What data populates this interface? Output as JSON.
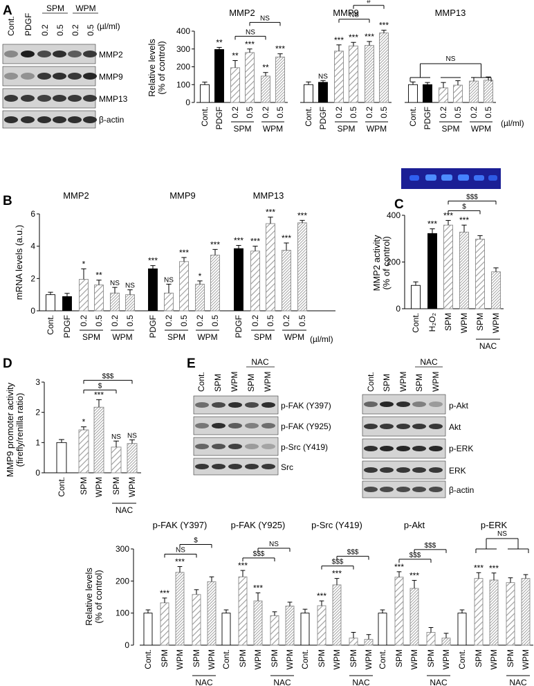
{
  "panels": {
    "a": "A",
    "b": "B",
    "c": "C",
    "d": "D",
    "e": "E"
  },
  "blot_a": {
    "lanes": [
      "Cont.",
      "PDGF",
      "0.2",
      "0.5",
      "0.2",
      "0.5"
    ],
    "group_spm": "SPM",
    "group_wpm": "WPM",
    "unit": "(µl/ml)",
    "rows": [
      "MMP2",
      "MMP9",
      "MMP13",
      "β-actin"
    ]
  },
  "blot_e": {
    "lanes": [
      "Cont.",
      "SPM",
      "WPM",
      "SPM",
      "WPM"
    ],
    "nac": "NAC",
    "rows_left": [
      "p-FAK (Y397)",
      "p-FAK (Y925)",
      "p-Src (Y419)",
      "Src"
    ],
    "rows_right": [
      "p-Akt",
      "Akt",
      "p-ERK",
      "ERK",
      "β-actin"
    ]
  },
  "chart_data": [
    {
      "id": "A",
      "type": "bar",
      "ylabel": [
        "Relative levels",
        "(% of control)"
      ],
      "ylim": [
        0,
        400
      ],
      "yticks": [
        0,
        100,
        200,
        300,
        400
      ],
      "unit": "(µl/ml)",
      "categories": [
        "Cont.",
        "PDGF",
        "0.2",
        "0.5",
        "0.2",
        "0.5"
      ],
      "groups": [
        {
          "label": "SPM",
          "from": 2,
          "to": 3
        },
        {
          "label": "WPM",
          "from": 4,
          "to": 5
        }
      ],
      "subcharts": [
        {
          "title": "MMP2",
          "values": [
            100,
            297,
            195,
            280,
            148,
            255
          ],
          "errors": [
            14,
            12,
            40,
            20,
            20,
            18
          ],
          "sig": [
            "",
            "**",
            "**",
            "***",
            "**",
            "***"
          ],
          "brackets": [
            {
              "from": 3,
              "to": 5,
              "label": "NS",
              "level": 1
            },
            {
              "from": 2,
              "to": 4,
              "label": "NS",
              "level": 0
            }
          ]
        },
        {
          "title": "MMP9",
          "values": [
            100,
            113,
            288,
            317,
            320,
            390
          ],
          "errors": [
            15,
            10,
            35,
            20,
            22,
            15
          ],
          "sig": [
            "",
            "NS",
            "***",
            "***",
            "***",
            "***"
          ],
          "brackets": [
            {
              "from": 3,
              "to": 5,
              "label": "#",
              "level": 1
            },
            {
              "from": 2,
              "to": 4,
              "label": "NS",
              "level": 0
            }
          ]
        },
        {
          "title": "MMP13",
          "values": [
            100,
            100,
            82,
            97,
            120,
            125
          ],
          "errors": [
            15,
            12,
            30,
            25,
            20,
            18
          ],
          "sig": [
            "",
            "",
            "",
            "",
            "",
            ""
          ],
          "bracket": {
            "label": "NS"
          }
        }
      ]
    },
    {
      "id": "B",
      "type": "bar",
      "ylabel": [
        "mRNA levels (a.u.)"
      ],
      "ylim": [
        0,
        6
      ],
      "yticks": [
        0,
        2,
        4,
        6
      ],
      "unit": "(µl/ml)",
      "subcharts": [
        {
          "title": "MMP2",
          "categories": [
            "Cont.",
            "PDGF",
            "0.2",
            "0.5",
            "0.2",
            "0.5"
          ],
          "groups": [
            {
              "label": "SPM",
              "from": 2,
              "to": 3
            },
            {
              "label": "WPM",
              "from": 4,
              "to": 5
            }
          ],
          "values": [
            1.0,
            0.88,
            1.95,
            1.6,
            1.1,
            1.0
          ],
          "errors": [
            0.15,
            0.2,
            0.65,
            0.3,
            0.35,
            0.3
          ],
          "sig": [
            "",
            "",
            "*",
            "**",
            "NS",
            "NS"
          ]
        },
        {
          "title": "MMP9",
          "categories": [
            "PDGF",
            "0.2",
            "0.5",
            "0.2",
            "0.5"
          ],
          "groups": [
            {
              "label": "SPM",
              "from": 1,
              "to": 2
            },
            {
              "label": "WPM",
              "from": 3,
              "to": 4
            }
          ],
          "values": [
            2.6,
            1.1,
            3.05,
            1.65,
            3.45
          ],
          "errors": [
            0.2,
            0.55,
            0.25,
            0.2,
            0.35
          ],
          "sig": [
            "***",
            "NS",
            "***",
            "*",
            "***"
          ]
        },
        {
          "title": "MMP13",
          "categories": [
            "PDGF",
            "0.2",
            "0.5",
            "0.2",
            "0.5"
          ],
          "groups": [
            {
              "label": "SPM",
              "from": 1,
              "to": 2
            },
            {
              "label": "WPM",
              "from": 3,
              "to": 4
            }
          ],
          "values": [
            3.85,
            3.7,
            5.4,
            3.75,
            5.45
          ],
          "errors": [
            0.2,
            0.3,
            0.4,
            0.45,
            0.15
          ],
          "sig": [
            "***",
            "***",
            "***",
            "***",
            "***"
          ]
        }
      ]
    },
    {
      "id": "C",
      "type": "bar",
      "title": "",
      "ylabel": [
        "MMP2 activity",
        "(% of control)"
      ],
      "ylim": [
        0,
        400
      ],
      "yticks": [
        0,
        200,
        400
      ],
      "categories": [
        "Cont.",
        "H₂O₂",
        "SPM",
        "WPM",
        "SPM",
        "WPM"
      ],
      "values": [
        100,
        322,
        358,
        328,
        298,
        158
      ],
      "errors": [
        15,
        20,
        20,
        30,
        15,
        17
      ],
      "sig": [
        "",
        "***",
        "***",
        "***",
        "",
        ""
      ],
      "nac_group": {
        "label": "NAC",
        "from": 4,
        "to": 5
      },
      "brackets": [
        {
          "from": 2,
          "to": 4,
          "label": "$",
          "level": 0
        },
        {
          "from": 2,
          "to": 5,
          "label": "$$$",
          "level": 1
        }
      ]
    },
    {
      "id": "D",
      "type": "bar",
      "ylabel": [
        "MMP9 promoter activity",
        "(firefly/renilla ratio)"
      ],
      "ylim": [
        0,
        3
      ],
      "yticks": [
        0,
        1,
        2,
        3
      ],
      "categories": [
        "Cont.",
        "SPM",
        "WPM",
        "SPM",
        "WPM"
      ],
      "values": [
        1.0,
        1.42,
        2.17,
        0.85,
        0.97
      ],
      "errors": [
        0.1,
        0.1,
        0.25,
        0.2,
        0.12
      ],
      "sig": [
        "",
        "*",
        "***",
        "NS",
        "NS"
      ],
      "nac_group": {
        "label": "NAC",
        "from": 3,
        "to": 4
      },
      "brackets": [
        {
          "from": 1,
          "to": 3,
          "label": "$",
          "level": 0
        },
        {
          "from": 1,
          "to": 4,
          "label": "$$$",
          "level": 1
        }
      ]
    },
    {
      "id": "E",
      "type": "bar",
      "ylabel": [
        "Relative levels",
        "(% of control)"
      ],
      "ylim": [
        0,
        300
      ],
      "yticks": [
        0,
        100,
        200,
        300
      ],
      "categories": [
        "Cont.",
        "SPM",
        "WPM",
        "SPM",
        "WPM"
      ],
      "nac_group": {
        "label": "NAC",
        "from": 3,
        "to": 4
      },
      "subcharts": [
        {
          "title": "p-FAK (Y397)",
          "values": [
            100,
            132,
            227,
            158,
            198
          ],
          "errors": [
            10,
            15,
            18,
            15,
            15
          ],
          "sig": [
            "",
            "***",
            "***",
            "",
            ""
          ],
          "brackets": [
            {
              "from": 1,
              "to": 3,
              "label": "NS",
              "level": 0
            },
            {
              "from": 2,
              "to": 4,
              "label": "$",
              "level": 1
            }
          ]
        },
        {
          "title": "p-FAK (Y925)",
          "values": [
            100,
            213,
            138,
            92,
            122
          ],
          "errors": [
            10,
            20,
            25,
            12,
            12
          ],
          "sig": [
            "",
            "***",
            "***",
            "",
            ""
          ],
          "brackets": [
            {
              "from": 1,
              "to": 3,
              "label": "$$$",
              "level": 0
            },
            {
              "from": 2,
              "to": 4,
              "label": "NS",
              "level": 1
            }
          ]
        },
        {
          "title": "p-Src (Y419)",
          "values": [
            100,
            123,
            188,
            22,
            18
          ],
          "errors": [
            12,
            15,
            20,
            18,
            15
          ],
          "sig": [
            "",
            "***",
            "***",
            "",
            ""
          ],
          "brackets": [
            {
              "from": 1,
              "to": 3,
              "label": "$$$",
              "level": 0
            },
            {
              "from": 2,
              "to": 4,
              "label": "$$$",
              "level": 1
            }
          ]
        },
        {
          "title": "p-Akt",
          "values": [
            100,
            212,
            177,
            40,
            22
          ],
          "errors": [
            10,
            17,
            25,
            15,
            15
          ],
          "sig": [
            "",
            "***",
            "***",
            "",
            ""
          ],
          "brackets": [
            {
              "from": 1,
              "to": 3,
              "label": "$$$",
              "level": 0
            },
            {
              "from": 2,
              "to": 4,
              "label": "$$$",
              "level": 1
            }
          ]
        },
        {
          "title": "p-ERK",
          "values": [
            100,
            208,
            203,
            195,
            208
          ],
          "errors": [
            10,
            18,
            22,
            15,
            12
          ],
          "sig": [
            "",
            "***",
            "***",
            "",
            ""
          ],
          "bracket": {
            "label": "NS"
          }
        }
      ]
    }
  ]
}
